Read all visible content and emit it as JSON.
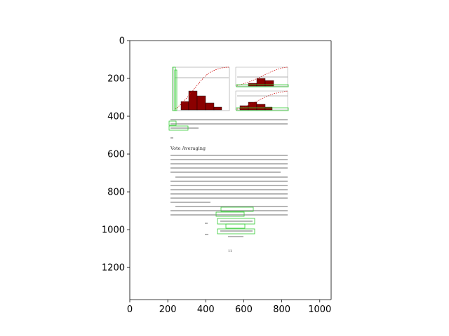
{
  "chart_data": {
    "type": "image",
    "title": "",
    "xlabel": "",
    "ylabel": "",
    "xlim": [
      0,
      1060
    ],
    "ylim": [
      1370,
      0
    ],
    "x_ticks": [
      0,
      200,
      400,
      600,
      800,
      1000
    ],
    "y_ticks": [
      0,
      200,
      400,
      600,
      800,
      1000,
      1200
    ],
    "grid": false,
    "y_axis_inverted": true
  },
  "page": {
    "section_heading": "Vote Averaging",
    "page_number": "11"
  },
  "colors": {
    "histogram_bar": "#8b0000",
    "cdf_curve": "#cc0000",
    "detection_box": "#33cc33",
    "text": "#8a8a8a"
  }
}
